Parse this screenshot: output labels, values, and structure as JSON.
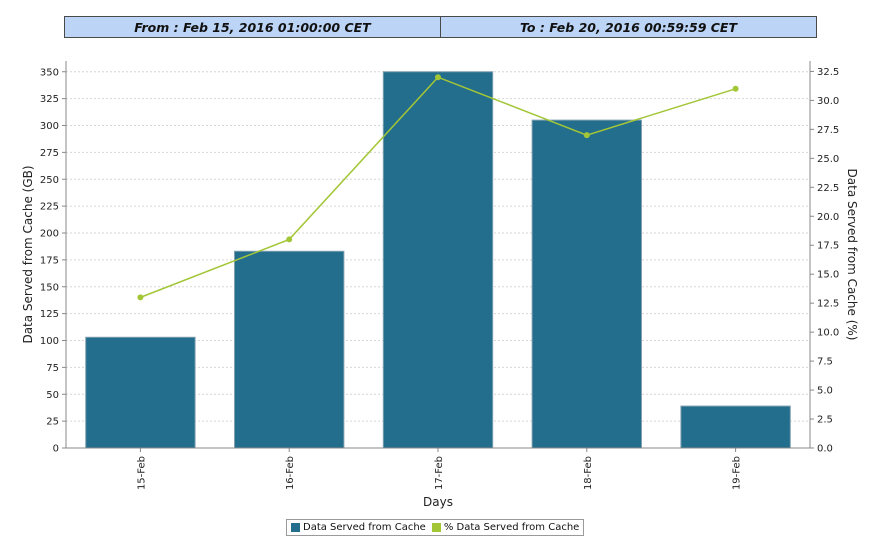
{
  "header": {
    "from_label": "From  :  Feb 15, 2016 01:00:00 CET",
    "to_label": "To  :  Feb 20, 2016 00:59:59 CET"
  },
  "chart_data": {
    "type": "bar",
    "categories": [
      "15-Feb",
      "16-Feb",
      "17-Feb",
      "18-Feb",
      "19-Feb"
    ],
    "series": [
      {
        "name": "Data Served from Cache",
        "type": "bar",
        "axis": "left",
        "color": "#236e8c",
        "values": [
          103,
          183,
          350,
          305,
          39
        ]
      },
      {
        "name": "% Data Served from Cache",
        "type": "line",
        "axis": "right",
        "color": "#a3c637",
        "values": [
          13.0,
          18.0,
          32.0,
          27.0,
          31.0
        ]
      }
    ],
    "xlabel": "Days",
    "ylabel": "Data Served from Cache (GB)",
    "y2label": "Data Served from Cache (%)",
    "ylim": [
      0,
      360
    ],
    "y2lim": [
      0,
      33.4
    ],
    "yticks": [
      "0",
      "25",
      "50",
      "75",
      "100",
      "125",
      "150",
      "175",
      "200",
      "225",
      "250",
      "275",
      "300",
      "325",
      "350"
    ],
    "y2ticks": [
      "0.0",
      "2.5",
      "5.0",
      "7.5",
      "10.0",
      "12.5",
      "15.0",
      "17.5",
      "20.0",
      "22.5",
      "25.0",
      "27.5",
      "30.0",
      "32.5"
    ],
    "grid": true,
    "legend": "bottom-center"
  }
}
